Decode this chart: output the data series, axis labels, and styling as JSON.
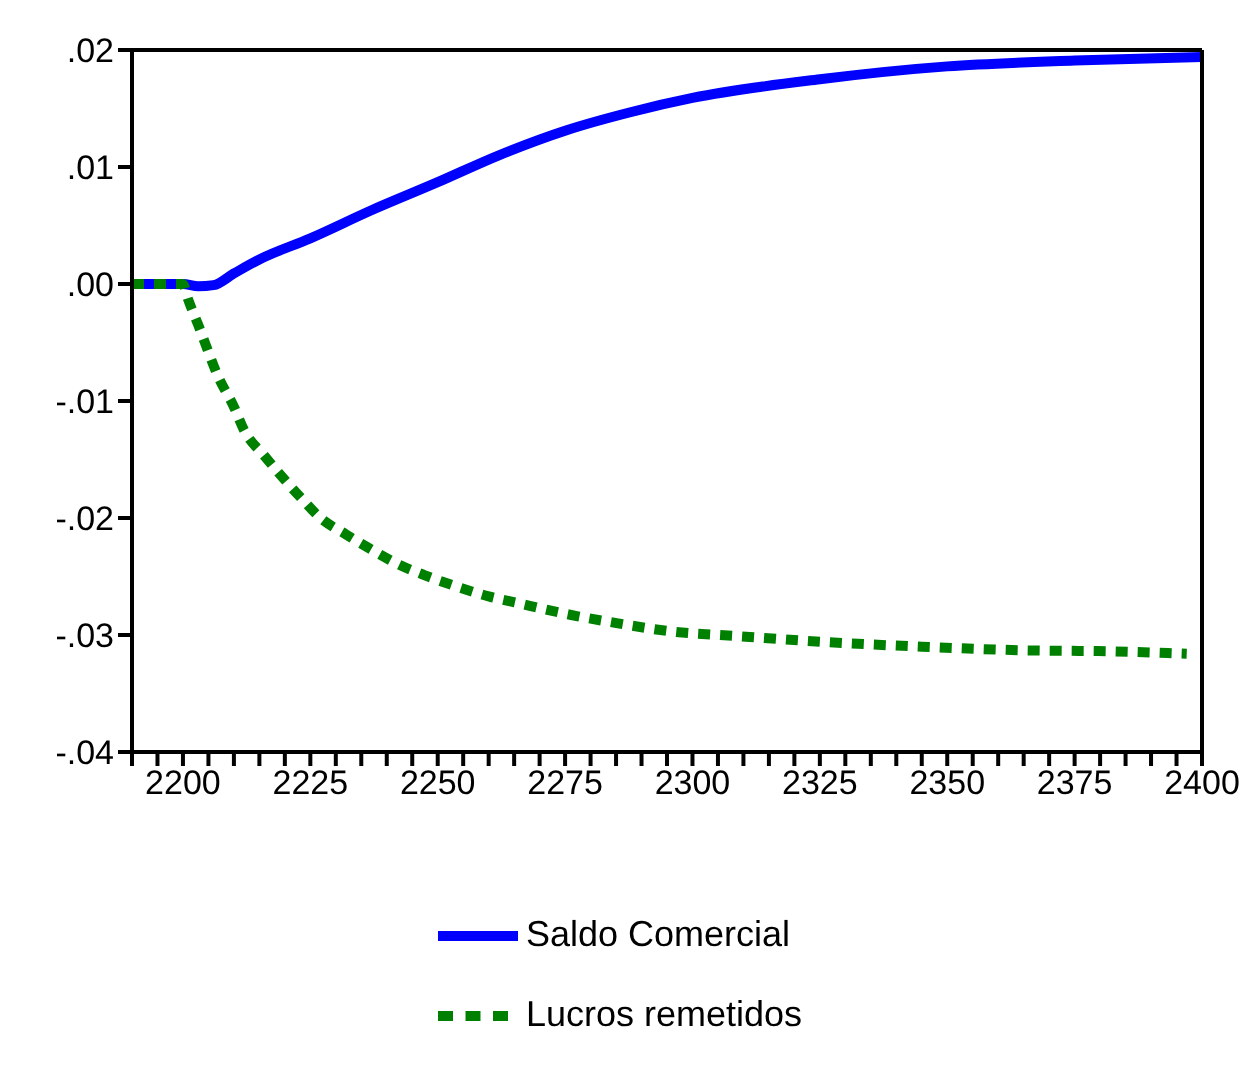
{
  "chart_data": {
    "type": "line",
    "xlim": [
      2190,
      2400
    ],
    "xticks": [
      {
        "value": 2190,
        "label": null
      },
      {
        "value": 2195,
        "label": null
      },
      2200,
      {
        "value": 2205,
        "label": null
      },
      {
        "value": 2210,
        "label": null
      },
      {
        "value": 2215,
        "label": null
      },
      {
        "value": 2220,
        "label": null
      },
      2225,
      {
        "value": 2230,
        "label": null
      },
      {
        "value": 2235,
        "label": null
      },
      {
        "value": 2240,
        "label": null
      },
      {
        "value": 2245,
        "label": null
      },
      2250,
      {
        "value": 2255,
        "label": null
      },
      {
        "value": 2260,
        "label": null
      },
      {
        "value": 2265,
        "label": null
      },
      {
        "value": 2270,
        "label": null
      },
      2275,
      {
        "value": 2280,
        "label": null
      },
      {
        "value": 2285,
        "label": null
      },
      {
        "value": 2290,
        "label": null
      },
      {
        "value": 2295,
        "label": null
      },
      2300,
      {
        "value": 2305,
        "label": null
      },
      {
        "value": 2310,
        "label": null
      },
      {
        "value": 2315,
        "label": null
      },
      {
        "value": 2320,
        "label": null
      },
      2325,
      {
        "value": 2330,
        "label": null
      },
      {
        "value": 2335,
        "label": null
      },
      {
        "value": 2340,
        "label": null
      },
      {
        "value": 2345,
        "label": null
      },
      2350,
      {
        "value": 2355,
        "label": null
      },
      {
        "value": 2360,
        "label": null
      },
      {
        "value": 2365,
        "label": null
      },
      {
        "value": 2370,
        "label": null
      },
      2375,
      {
        "value": 2380,
        "label": null
      },
      {
        "value": 2385,
        "label": null
      },
      {
        "value": 2390,
        "label": null
      },
      {
        "value": 2395,
        "label": null
      },
      2400
    ],
    "ylim": [
      -0.04,
      0.02
    ],
    "yticks": [
      {
        "value": -0.04,
        "label": "-.04"
      },
      {
        "value": -0.03,
        "label": "-.03"
      },
      {
        "value": -0.02,
        "label": "-.02"
      },
      {
        "value": -0.01,
        "label": "-.01"
      },
      {
        "value": 0,
        "label": ".00"
      },
      {
        "value": 0.01,
        "label": ".01"
      },
      {
        "value": 0.02,
        "label": ".02"
      }
    ],
    "legend": "bottom",
    "marker": "none",
    "series": [
      {
        "name": "Saldo Comercial",
        "color": "#0000ff",
        "line_style": "solid",
        "x": [
          2190,
          2200,
          2203,
          2206,
          2210,
          2215,
          2225,
          2237,
          2250,
          2262,
          2275,
          2288,
          2300,
          2325,
          2350,
          2375,
          2400
        ],
        "values": [
          0,
          0,
          -0.0002,
          -0.0001,
          0.0009,
          0.0021,
          0.0039,
          0.0063,
          0.0087,
          0.011,
          0.0131,
          0.0147,
          0.0159,
          0.0175,
          0.0186,
          0.0191,
          0.0194
        ]
      },
      {
        "name": "Lucros remetidos",
        "color": "#008000",
        "line_style": "dotted",
        "x": [
          2190,
          2200,
          2201,
          2203,
          2207,
          2210,
          2212,
          2216,
          2219.5,
          2223,
          2227,
          2232,
          2237,
          2242,
          2247.5,
          2254,
          2260,
          2266,
          2272,
          2277.5,
          2284,
          2296,
          2309,
          2326,
          2345,
          2364,
          2383,
          2397
        ],
        "values": [
          0,
          0,
          -0.0013,
          -0.0035,
          -0.008,
          -0.0105,
          -0.0125,
          -0.0147,
          -0.0165,
          -0.0182,
          -0.02,
          -0.0214,
          -0.0227,
          -0.0239,
          -0.0249,
          -0.0259,
          -0.0267,
          -0.0273,
          -0.0279,
          -0.0284,
          -0.0289,
          -0.0297,
          -0.0301,
          -0.0306,
          -0.031,
          -0.0313,
          -0.0314,
          -0.0316
        ]
      }
    ]
  }
}
